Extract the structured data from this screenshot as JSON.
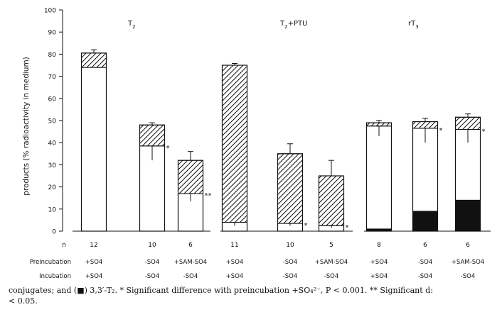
{
  "chart_data": {
    "type": "bar",
    "stacked": true,
    "ylabel": "products (% radioactivity in medium)",
    "ylim": [
      0,
      100
    ],
    "yticks": [
      0,
      10,
      20,
      30,
      40,
      50,
      60,
      70,
      80,
      90,
      100
    ],
    "panels": [
      {
        "title": "T",
        "title_sub": "2",
        "bars": [
          {
            "n": "12",
            "preincubation": "+SO4",
            "incubation": "+SO4",
            "black": 0,
            "white": 74,
            "hatched": 6.5,
            "error_top": 1.5,
            "error_white": 0,
            "sig": ""
          },
          {
            "n": "10",
            "preincubation": "-SO4",
            "incubation": "-SO4",
            "black": 0,
            "white": 38.5,
            "hatched": 9.5,
            "error_top": 1,
            "error_white": 6.5,
            "sig": "*"
          },
          {
            "n": "6",
            "preincubation": "+SAM-SO4",
            "incubation": "-SO4",
            "black": 0,
            "white": 17,
            "hatched": 15,
            "error_top": 4,
            "error_white": 3.5,
            "sig": "**"
          }
        ]
      },
      {
        "title": "T",
        "title_sub": "2",
        "title_suffix": "+PTU",
        "bars": [
          {
            "n": "11",
            "preincubation": "+SO4",
            "incubation": "+SO4",
            "black": 0,
            "white": 4,
            "hatched": 71,
            "error_top": 0.8,
            "error_white": 1.5,
            "sig": ""
          },
          {
            "n": "10",
            "preincubation": "-SO4",
            "incubation": "-SO4",
            "black": 0,
            "white": 3.5,
            "hatched": 31.5,
            "error_top": 4.5,
            "error_white": 1,
            "sig": "*"
          },
          {
            "n": "5",
            "preincubation": "+SAM-SO4",
            "incubation": "-SO4",
            "black": 0,
            "white": 2.5,
            "hatched": 22.5,
            "error_top": 7,
            "error_white": 1,
            "sig": "*"
          }
        ]
      },
      {
        "title": "rT",
        "title_sub": "3",
        "bars": [
          {
            "n": "8",
            "preincubation": "+SO4",
            "incubation": "+SO4",
            "black": 1,
            "white": 46.5,
            "hatched": 1.5,
            "error_top": 1,
            "error_white": 4.5,
            "sig": ""
          },
          {
            "n": "6",
            "preincubation": "-SO4",
            "incubation": "-SO4",
            "black": 9,
            "white": 37.5,
            "hatched": 3,
            "error_top": 1.5,
            "error_white": 6.5,
            "sig": "*"
          },
          {
            "n": "6",
            "preincubation": "+SAM-SO4",
            "incubation": "-SO4",
            "black": 14,
            "white": 32,
            "hatched": 5.5,
            "error_top": 1.5,
            "error_white": 6,
            "sig": "*"
          }
        ]
      }
    ],
    "row_labels": {
      "n": "n",
      "preincubation": "Preincubation",
      "incubation": "Incubation"
    }
  },
  "caption": {
    "line1": "conjugates; and (■) 3,3′-T₂. * Significant difference with preincubation +SO₄²⁻, P < 0.001. ** Significant d:",
    "line2": "< 0.05."
  },
  "colors": {
    "ink": "#111111",
    "fill_white": "#ffffff",
    "fill_black": "#111111"
  }
}
